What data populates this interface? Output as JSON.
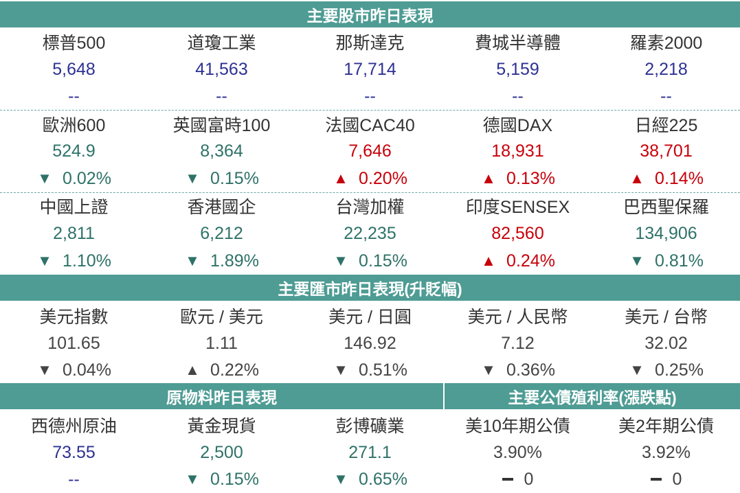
{
  "stocks": {
    "header": "主要股市昨日表現",
    "rows": [
      [
        {
          "label": "標普500",
          "value": "5,648",
          "change": "--",
          "dir": "none",
          "color": "navy"
        },
        {
          "label": "道瓊工業",
          "value": "41,563",
          "change": "--",
          "dir": "none",
          "color": "navy"
        },
        {
          "label": "那斯達克",
          "value": "17,714",
          "change": "--",
          "dir": "none",
          "color": "navy"
        },
        {
          "label": "費城半導體",
          "value": "5,159",
          "change": "--",
          "dir": "none",
          "color": "navy"
        },
        {
          "label": "羅素2000",
          "value": "2,218",
          "change": "--",
          "dir": "none",
          "color": "navy"
        }
      ],
      [
        {
          "label": "歐洲600",
          "value": "524.9",
          "change": "0.02%",
          "dir": "down",
          "color": "teal"
        },
        {
          "label": "英國富時100",
          "value": "8,364",
          "change": "0.15%",
          "dir": "down",
          "color": "teal"
        },
        {
          "label": "法國CAC40",
          "value": "7,646",
          "change": "0.20%",
          "dir": "up",
          "color": "red"
        },
        {
          "label": "德國DAX",
          "value": "18,931",
          "change": "0.13%",
          "dir": "up",
          "color": "red"
        },
        {
          "label": "日經225",
          "value": "38,701",
          "change": "0.14%",
          "dir": "up",
          "color": "red"
        }
      ],
      [
        {
          "label": "中國上證",
          "value": "2,811",
          "change": "1.10%",
          "dir": "down",
          "color": "teal"
        },
        {
          "label": "香港國企",
          "value": "6,212",
          "change": "1.89%",
          "dir": "down",
          "color": "teal"
        },
        {
          "label": "台灣加權",
          "value": "22,235",
          "change": "0.15%",
          "dir": "down",
          "color": "teal"
        },
        {
          "label": "印度SENSEX",
          "value": "82,560",
          "change": "0.24%",
          "dir": "up",
          "color": "red"
        },
        {
          "label": "巴西聖保羅",
          "value": "134,906",
          "change": "0.81%",
          "dir": "down",
          "color": "teal"
        }
      ]
    ]
  },
  "fx": {
    "header": "主要匯市昨日表現(升貶幅)",
    "items": [
      {
        "label": "美元指數",
        "value": "101.65",
        "change": "0.04%",
        "dir": "down",
        "color": "gray"
      },
      {
        "label": "歐元 / 美元",
        "value": "1.11",
        "change": "0.22%",
        "dir": "up",
        "color": "gray"
      },
      {
        "label": "美元 / 日圓",
        "value": "146.92",
        "change": "0.51%",
        "dir": "down",
        "color": "gray"
      },
      {
        "label": "美元 / 人民幣",
        "value": "7.12",
        "change": "0.36%",
        "dir": "down",
        "color": "gray"
      },
      {
        "label": "美元 / 台幣",
        "value": "32.02",
        "change": "0.25%",
        "dir": "down",
        "color": "gray"
      }
    ]
  },
  "commodities": {
    "header": "原物料昨日表現",
    "items": [
      {
        "label": "西德州原油",
        "value": "73.55",
        "change": "--",
        "dir": "none",
        "color": "navy"
      },
      {
        "label": "黃金現貨",
        "value": "2,500",
        "change": "0.15%",
        "dir": "down",
        "color": "teal"
      },
      {
        "label": "彭博礦業",
        "value": "271.1",
        "change": "0.65%",
        "dir": "down",
        "color": "teal"
      }
    ]
  },
  "bonds": {
    "header": "主要公債殖利率(漲跌點)",
    "items": [
      {
        "label": "美10年期公債",
        "value": "3.90%",
        "change": "0",
        "dir": "flat",
        "color": "gray"
      },
      {
        "label": "美2年期公債",
        "value": "3.92%",
        "change": "0",
        "dir": "flat",
        "color": "gray"
      }
    ]
  },
  "colors": {
    "header_bg": "#4e9c94",
    "navy": "#2e3192",
    "teal": "#2e7268",
    "red": "#c8000a",
    "gray": "#444444"
  }
}
